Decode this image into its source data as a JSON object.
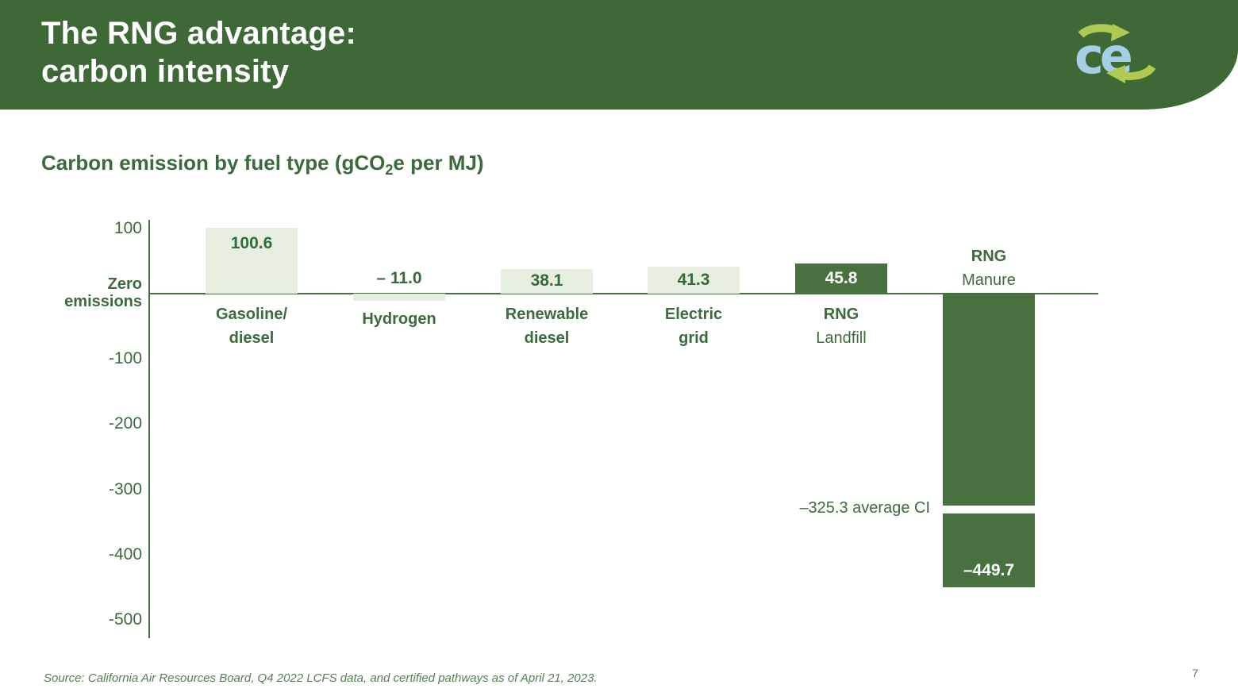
{
  "header": {
    "title_line1": "The RNG advantage:",
    "title_line2": "carbon intensity",
    "logo": {
      "letters": "ce",
      "blue": "#a4cfe4",
      "green": "#afca52"
    }
  },
  "chart_heading": {
    "prefix": "Carbon emission by fuel type (gCO",
    "subscript": "2",
    "suffix": "e per MJ)"
  },
  "chart_data": {
    "type": "bar",
    "title": "Carbon emission by fuel type (gCO2e per MJ)",
    "ylabel": "gCO2e per MJ",
    "ylim": [
      -500,
      100
    ],
    "grid": false,
    "legend": "none",
    "yticks": [
      {
        "label": "100",
        "value": 100
      },
      {
        "label": "-100",
        "value": -100
      },
      {
        "label": "-200",
        "value": -200
      },
      {
        "label": "-300",
        "value": -300
      },
      {
        "label": "-400",
        "value": -400
      },
      {
        "label": "-500",
        "value": -500
      }
    ],
    "zero_label_lines": [
      "Zero",
      "emissions"
    ],
    "categories": [
      "Gasoline/diesel",
      "Hydrogen",
      "Renewable diesel",
      "Electric grid",
      "RNG Landfill",
      "RNG Manure"
    ],
    "values": [
      100.6,
      -11.0,
      38.1,
      41.3,
      45.8,
      -449.7
    ],
    "bars": [
      {
        "label_lines": [
          "Gasoline/",
          "diesel"
        ],
        "bold_lines": [
          true,
          true
        ],
        "label_pos": "below",
        "value": 100.6,
        "value_label": "100.6",
        "tone": "light",
        "value_pos": "inside-top"
      },
      {
        "label_lines": [
          "Hydrogen"
        ],
        "bold_lines": [
          true
        ],
        "label_pos": "below",
        "value": -11.0,
        "value_label": "– 11.0",
        "tone": "light",
        "value_pos": "above"
      },
      {
        "label_lines": [
          "Renewable",
          "diesel"
        ],
        "bold_lines": [
          true,
          true
        ],
        "label_pos": "below",
        "value": 38.1,
        "value_label": "38.1",
        "tone": "light",
        "value_pos": "inside"
      },
      {
        "label_lines": [
          "Electric",
          "grid"
        ],
        "bold_lines": [
          true,
          true
        ],
        "label_pos": "below",
        "value": 41.3,
        "value_label": "41.3",
        "tone": "light",
        "value_pos": "inside"
      },
      {
        "label_lines": [
          "RNG",
          "Landfill"
        ],
        "bold_lines": [
          true,
          false
        ],
        "label_pos": "below",
        "value": 45.8,
        "value_label": "45.8",
        "tone": "dark",
        "value_pos": "inside"
      },
      {
        "label_lines": [
          "RNG",
          "Manure"
        ],
        "bold_lines": [
          true,
          false
        ],
        "label_pos": "above",
        "value": -449.7,
        "value_label": "–449.7",
        "tone": "dark",
        "value_pos": "inside-bottom",
        "gap_at": -325.3
      }
    ],
    "annotation": {
      "text": "–325.3 average CI",
      "value": -325.3
    },
    "colors": {
      "header_green": "#3e6937",
      "light_bar": "#e6eee1",
      "dark_bar": "#48713f",
      "axis": "#44713f",
      "text_green": "#3b6b3c"
    }
  },
  "footer": {
    "source": "Source: California Air Resources Board, Q4 2022 LCFS data, and certified pathways as of April 21, 2023.",
    "page_number": "7"
  }
}
